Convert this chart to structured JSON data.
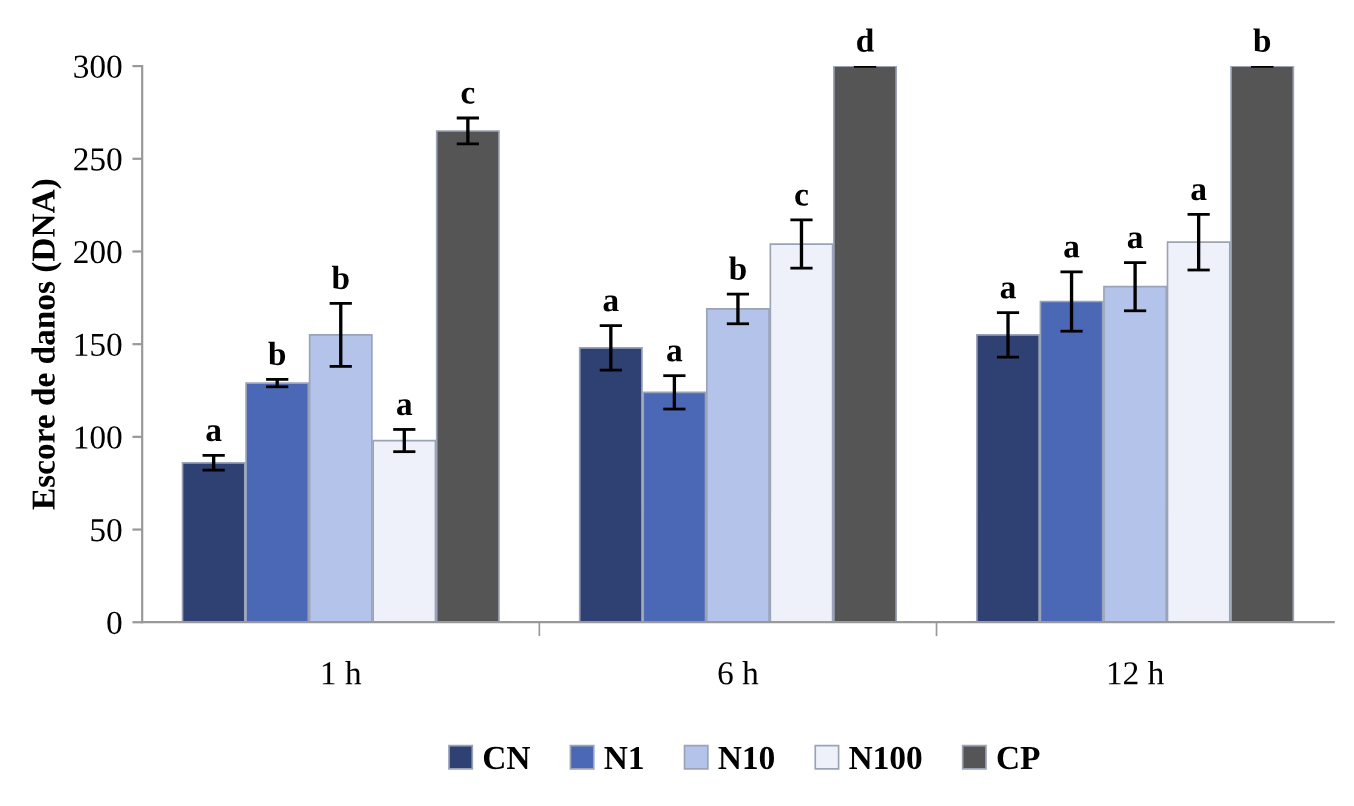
{
  "chart_data": {
    "type": "bar",
    "ylabel": "Escore de danos (DNA)",
    "categories": [
      "1 h",
      "6 h",
      "12 h"
    ],
    "series": [
      {
        "name": "CN",
        "color": "#2f4173",
        "values": [
          86,
          148,
          155
        ],
        "errors": [
          4,
          12,
          12
        ],
        "value_labels": [
          "a",
          "a",
          "a"
        ]
      },
      {
        "name": "N1",
        "color": "#4a68b5",
        "values": [
          129,
          124,
          173
        ],
        "errors": [
          2,
          9,
          16
        ],
        "value_labels": [
          "b",
          "a",
          "a"
        ]
      },
      {
        "name": "N10",
        "color": "#b4c3ea",
        "values": [
          155,
          169,
          181
        ],
        "errors": [
          17,
          8,
          13
        ],
        "value_labels": [
          "b",
          "b",
          "a"
        ]
      },
      {
        "name": "N100",
        "color": "#eef1f9",
        "values": [
          98,
          204,
          205
        ],
        "errors": [
          6,
          13,
          15
        ],
        "value_labels": [
          "a",
          "c",
          "a"
        ]
      },
      {
        "name": "CP",
        "color": "#555555",
        "values": [
          265,
          300,
          300
        ],
        "errors": [
          7,
          0,
          0
        ],
        "value_labels": [
          "c",
          "d",
          "b"
        ]
      }
    ],
    "ylim": [
      0,
      300
    ],
    "yticks": [
      0,
      50,
      100,
      150,
      200,
      250,
      300
    ],
    "grid": false,
    "legend": "bottom"
  }
}
